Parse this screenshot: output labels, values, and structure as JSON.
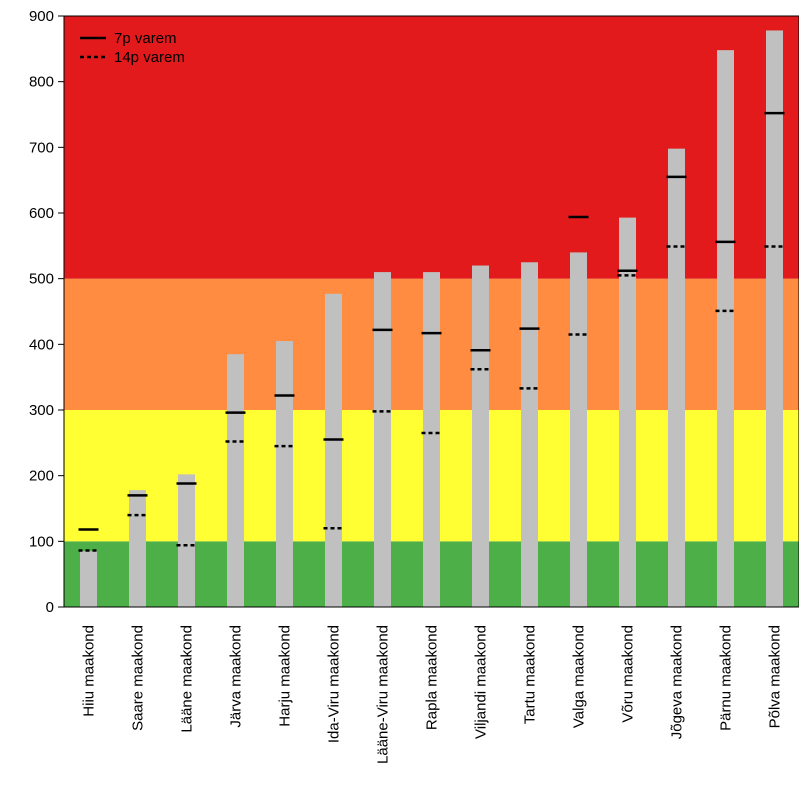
{
  "chart_data": {
    "type": "bar",
    "title": "",
    "xlabel": "",
    "ylabel": "",
    "ylim": [
      0,
      900
    ],
    "yticks": [
      0,
      100,
      200,
      300,
      400,
      500,
      600,
      700,
      800,
      900
    ],
    "grid": false,
    "legend_position": "top-left",
    "bar_color": "#c0c0c0",
    "bands": [
      {
        "from": 0,
        "to": 100,
        "color": "#4caf47"
      },
      {
        "from": 100,
        "to": 300,
        "color": "#ffff33"
      },
      {
        "from": 300,
        "to": 500,
        "color": "#ff8c40"
      },
      {
        "from": 500,
        "to": 900,
        "color": "#e31a1c"
      }
    ],
    "legend": [
      {
        "label": "7p varem",
        "style": "solid"
      },
      {
        "label": "14p varem",
        "style": "dotted"
      }
    ],
    "categories": [
      "Hiiu maakond",
      "Saare maakond",
      "Lääne maakond",
      "Järva maakond",
      "Harju maakond",
      "Ida-Viru maakond",
      "Lääne-Viru maakond",
      "Rapla maakond",
      "Viljandi maakond",
      "Tartu maakond",
      "Valga maakond",
      "Võru maakond",
      "Jõgeva maakond",
      "Pärnu maakond",
      "Põlva maakond"
    ],
    "values": [
      85,
      178,
      202,
      385,
      405,
      477,
      510,
      510,
      520,
      525,
      540,
      593,
      698,
      848,
      878
    ],
    "marker_7p": [
      118,
      170,
      188,
      296,
      322,
      255,
      422,
      417,
      391,
      424,
      594,
      512,
      655,
      556,
      752
    ],
    "marker_14p": [
      86,
      140,
      94,
      252,
      245,
      120,
      298,
      265,
      362,
      333,
      415,
      505,
      549,
      451,
      549
    ]
  }
}
